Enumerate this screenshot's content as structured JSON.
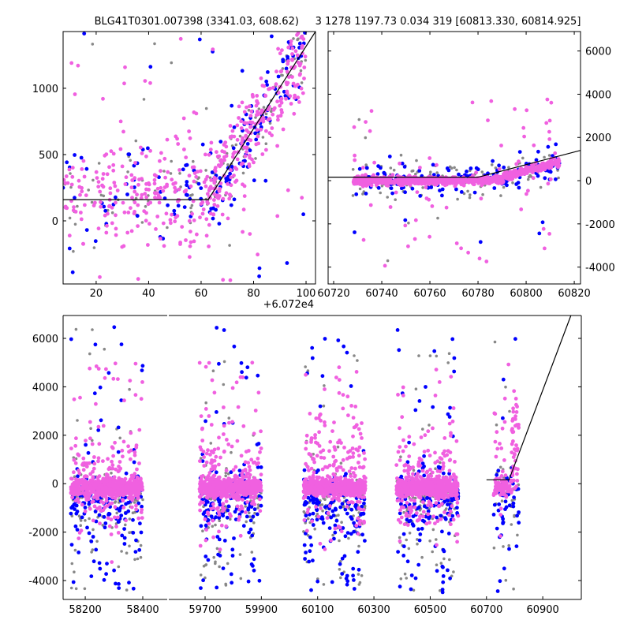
{
  "chart_data": {
    "type": "scatter",
    "title": "BLG41T0301.007398 (3341.03, 608.62)     3 1278 1197.73 0.034 319 [60813.330, 60814.925]",
    "colors": {
      "primary": "#f060e0",
      "secondary": "#0000ff",
      "tertiary": "#888888",
      "line": "#000000"
    },
    "panels": [
      {
        "name": "top-left-zoom",
        "xlim": [
          7.4,
          103.6
        ],
        "ylim": [
          -476,
          1428
        ],
        "x_offset_label": "+6.072e4",
        "xticks": [
          20,
          40,
          60,
          80,
          100
        ],
        "xtick_labels": [
          "20",
          "40",
          "60",
          "80",
          "100"
        ],
        "yticks": [
          0,
          500,
          1000
        ],
        "ytick_labels": [
          "0",
          "500",
          "1000"
        ],
        "yaxis_side": "left",
        "model_line": [
          [
            7.4,
            160
          ],
          [
            62.7,
            160
          ],
          [
            103.6,
            1428
          ]
        ],
        "clusters": [
          {
            "x": [
              7.4,
              63
            ],
            "y_center": 200,
            "y_sigma": 320,
            "n": [
              230,
              60,
              60
            ]
          },
          {
            "x": [
              63,
              100
            ],
            "y_center": "trend",
            "y_sigma": 260,
            "n": [
              260,
              110,
              60
            ]
          }
        ]
      },
      {
        "name": "top-right-season",
        "xlim": [
          60717.7,
          60822.6
        ],
        "ylim": [
          -4780,
          6900
        ],
        "xticks": [
          60720,
          60740,
          60760,
          60780,
          60800,
          60820
        ],
        "xtick_labels": [
          "60720",
          "60740",
          "60760",
          "60780",
          "60800",
          "60820"
        ],
        "yticks": [
          -4000,
          -2000,
          0,
          2000,
          4000,
          6000
        ],
        "ytick_labels": [
          "−4000",
          "−2000",
          "0",
          "2000",
          "4000",
          "6000"
        ],
        "yaxis_side": "right",
        "model_line": [
          [
            60717.7,
            160
          ],
          [
            60780,
            160
          ],
          [
            60822.6,
            1400
          ]
        ],
        "clusters": [
          {
            "x": [
              60728,
              60814
            ],
            "y_center": 100,
            "y_sigma": 450,
            "n": [
              900,
              160,
              140
            ]
          }
        ]
      },
      {
        "name": "bottom-full-lightcurve",
        "broken_axis": true,
        "xlim_left": [
          58123,
          58485
        ],
        "xlim_right": [
          59571,
          61037
        ],
        "ylim": [
          -4780,
          6945
        ],
        "xticks_left": [
          58200,
          58400
        ],
        "xtick_labels_left": [
          "58200",
          "58400"
        ],
        "xticks_right": [
          59700,
          59900,
          60100,
          60300,
          60500,
          60700,
          60900
        ],
        "xtick_labels_right": [
          "59700",
          "59900",
          "60100",
          "60300",
          "60500",
          "60700",
          "60900"
        ],
        "yticks": [
          -4000,
          -2000,
          0,
          2000,
          4000,
          6000
        ],
        "ytick_labels": [
          "−4000",
          "−2000",
          "0",
          "2000",
          "4000",
          "6000"
        ],
        "yaxis_side": "left",
        "model_line": [
          [
            60700,
            160
          ],
          [
            60780,
            160
          ],
          [
            61000,
            6945
          ]
        ],
        "seasons": [
          [
            58150,
            58400
          ],
          [
            59680,
            59900
          ],
          [
            60050,
            60270
          ],
          [
            60380,
            60600
          ],
          [
            60725,
            60815
          ]
        ]
      }
    ]
  }
}
